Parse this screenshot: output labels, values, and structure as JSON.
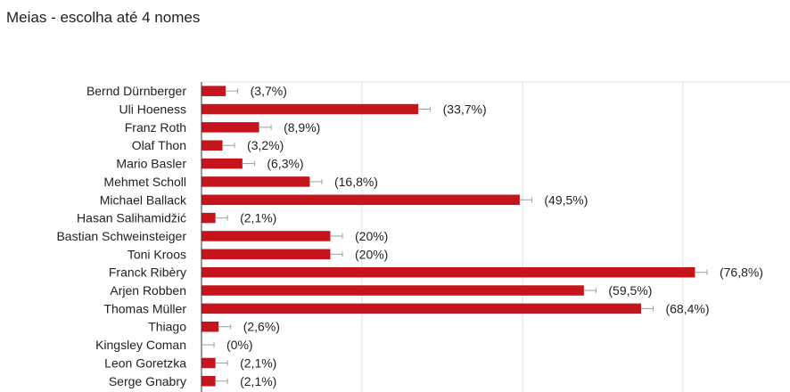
{
  "title": "Meias - escolha até 4 nomes",
  "colors": {
    "bar": "#c5141b",
    "grid": "#e0e0e0",
    "axis": "#333333",
    "whisker": "#9e9e9e"
  },
  "chart_data": {
    "type": "bar",
    "orientation": "horizontal",
    "title": "Meias - escolha até 4 nomes",
    "xlabel": "",
    "ylabel": "",
    "xlim": [
      0,
      100
    ],
    "grid": true,
    "categories": [
      "Bernd Dürnberger",
      "Uli Hoeness",
      "Franz Roth",
      "Olaf Thon",
      "Mario Basler",
      "Mehmet Scholl",
      "Michael Ballack",
      "Hasan Salihamidžić",
      "Bastian Schweinsteiger",
      "Toni Kroos",
      "Franck Ribèry",
      "Arjen Robben",
      "Thomas Müller",
      "Thiago",
      "Kingsley Coman",
      "Leon Goretzka",
      "Serge Gnabry"
    ],
    "values": [
      3.7,
      33.7,
      8.9,
      3.2,
      6.3,
      16.8,
      49.5,
      2.1,
      20,
      20,
      76.8,
      59.5,
      68.4,
      2.6,
      0,
      2.1,
      2.1
    ],
    "labels": [
      "(3,7%)",
      "(33,7%)",
      "(8,9%)",
      "(3,2%)",
      "(6,3%)",
      "(16,8%)",
      "(49,5%)",
      "(2,1%)",
      "(20%)",
      "(20%)",
      "(76,8%)",
      "(59,5%)",
      "(68,4%)",
      "(2,6%)",
      "(0%)",
      "(2,1%)",
      "(2,1%)"
    ]
  }
}
